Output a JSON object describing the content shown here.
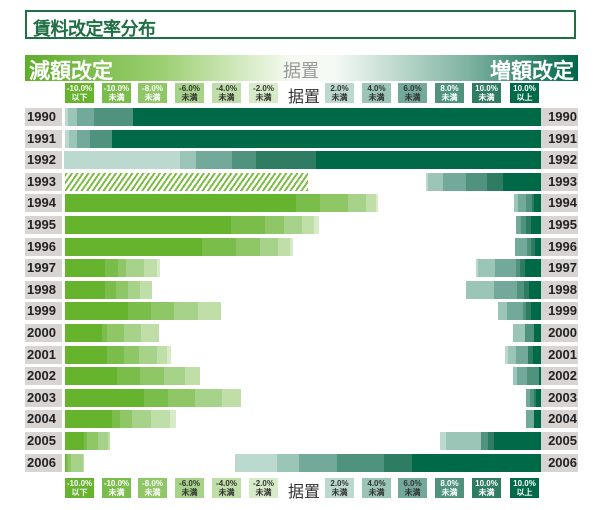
{
  "title": "賃料改定率分布",
  "band": {
    "left": "減額改定",
    "middle": "据置",
    "right": "増額改定"
  },
  "chart_data": {
    "type": "bar",
    "orientation": "horizontal-diverging",
    "unit": "%",
    "xlim": [
      0,
      100
    ],
    "categories": [
      "1990",
      "1991",
      "1992",
      "1993",
      "1994",
      "1995",
      "1996",
      "1997",
      "1998",
      "1999",
      "2000",
      "2001",
      "2002",
      "2003",
      "2004",
      "2005",
      "2006"
    ],
    "decrease_classes": [
      {
        "top": "-10.0%",
        "bottom": "以下",
        "color": "#66b32e",
        "text": "#ffffff"
      },
      {
        "top": "-10.0%",
        "bottom": "未満",
        "color": "#7bbd4a",
        "text": "#ffffff"
      },
      {
        "top": "-8.0%",
        "bottom": "未満",
        "color": "#8fc766",
        "text": "#ffffff"
      },
      {
        "top": "-6.0%",
        "bottom": "未満",
        "color": "#a6d28a",
        "text": "#333333"
      },
      {
        "top": "-4.0%",
        "bottom": "未満",
        "color": "#bfdea8",
        "text": "#333333"
      },
      {
        "top": "-2.0%",
        "bottom": "未満",
        "color": "#d7ebc8",
        "text": "#333333"
      }
    ],
    "unchanged_label": "据置",
    "increase_classes": [
      {
        "top": "2.0%",
        "bottom": "未満",
        "color": "#bcd9d0",
        "text": "#333333"
      },
      {
        "top": "4.0%",
        "bottom": "未満",
        "color": "#9bc5b7",
        "text": "#333333"
      },
      {
        "top": "6.0%",
        "bottom": "未満",
        "color": "#73a99a",
        "text": "#333333"
      },
      {
        "top": "8.0%",
        "bottom": "未満",
        "color": "#4f937e",
        "text": "#ffffff"
      },
      {
        "top": "10.0%",
        "bottom": "未満",
        "color": "#2e7d63",
        "text": "#ffffff"
      },
      {
        "top": "10.0%",
        "bottom": "以上",
        "color": "#006a48",
        "text": "#ffffff"
      }
    ],
    "hatched_color": "#7dbd45",
    "decrease": [
      [
        0,
        0,
        0,
        0,
        0,
        0
      ],
      [
        0,
        0,
        0,
        0,
        0,
        0
      ],
      [
        0,
        0,
        0,
        0,
        0,
        0
      ],
      null,
      [
        48.6,
        5.0,
        5.9,
        3.7,
        2.2,
        0.3
      ],
      [
        34.9,
        7.1,
        4.1,
        3.7,
        2.6,
        1.0
      ],
      [
        28.8,
        7.2,
        5.0,
        3.8,
        2.5,
        0.5
      ],
      [
        8.5,
        2.7,
        1.7,
        3.7,
        2.7,
        0.7
      ],
      [
        8.5,
        2.3,
        2.4,
        2.5,
        2.5,
        0
      ],
      [
        13.2,
        4.8,
        5.0,
        4.9,
        4.8,
        0
      ],
      [
        7.8,
        1.1,
        3.5,
        3.5,
        3.9,
        0
      ],
      [
        8.8,
        3.5,
        3.2,
        3.9,
        2.0,
        0.8
      ],
      [
        10.9,
        4.9,
        4.9,
        4.6,
        3.0,
        0
      ],
      [
        16.7,
        5.0,
        5.6,
        5.6,
        4.1,
        0
      ],
      [
        9.9,
        1.6,
        2.6,
        3.9,
        4.1,
        1.3
      ],
      [
        3.9,
        0.7,
        2.4,
        2.1,
        0.4,
        0
      ],
      [
        0.3,
        0.3,
        0.6,
        2.5,
        0.3,
        0
      ]
    ],
    "decrease_hatched_total": {
      "1993": 51.0
    },
    "increase": [
      [
        0.8,
        1.8,
        3.5,
        8.2,
        0,
        85.8
      ],
      [
        0.8,
        1.8,
        2.7,
        4.6,
        0,
        90.1
      ],
      [
        24.4,
        3.4,
        7.4,
        5.1,
        12.6,
        47.3
      ],
      [
        0.5,
        3.1,
        4.8,
        4.4,
        3.4,
        8.0
      ],
      [
        0,
        0.8,
        1.6,
        1.3,
        0.4,
        1.5
      ],
      [
        0,
        0,
        1.2,
        0.9,
        1.1,
        2.1
      ],
      [
        0,
        0,
        2.5,
        1.0,
        0.7,
        1.3
      ],
      [
        0.5,
        3.6,
        4.3,
        0.9,
        1.0,
        3.4
      ],
      [
        0,
        5.9,
        4.8,
        1.4,
        1.1,
        2.5
      ],
      [
        0,
        1.8,
        3.4,
        0.6,
        1.1,
        2.1
      ],
      [
        0,
        2.5,
        0,
        1.8,
        0,
        1.5
      ],
      [
        0.5,
        1.7,
        2.5,
        0,
        1.1,
        1.7
      ],
      [
        0,
        0.8,
        2.0,
        2.6,
        0,
        0.4
      ],
      [
        0,
        0,
        0.7,
        0.9,
        0.5,
        1.0
      ],
      [
        0,
        0,
        1.6,
        0,
        0,
        1.5
      ],
      [
        1.2,
        7.4,
        0,
        1.5,
        1.3,
        9.8
      ],
      [
        8.9,
        4.5,
        8.1,
        9.8,
        6.0,
        27.0
      ]
    ]
  }
}
